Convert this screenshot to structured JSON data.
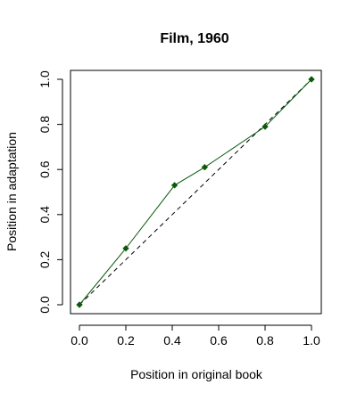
{
  "chart_data": {
    "type": "line",
    "title": "Film, 1960",
    "xlabel": "Position in original book",
    "ylabel": "Position in adaptation",
    "xlim": [
      0,
      1
    ],
    "ylim": [
      0,
      1
    ],
    "x_ticks": [
      "0.0",
      "0.2",
      "0.4",
      "0.6",
      "0.8",
      "1.0"
    ],
    "y_ticks": [
      "0.0",
      "0.2",
      "0.4",
      "0.6",
      "0.8",
      "1.0"
    ],
    "grid": false,
    "legend": "none",
    "series": [
      {
        "x": [
          0.0,
          0.2,
          0.41,
          0.54,
          0.8,
          1.0
        ],
        "y": [
          0.0,
          0.25,
          0.53,
          0.61,
          0.79,
          1.0
        ],
        "color": "#0a5a0a",
        "marker": "diamond",
        "line_style": "solid"
      }
    ],
    "reference_line": {
      "x": [
        0,
        1
      ],
      "y": [
        0,
        1
      ],
      "color": "#000000",
      "line_style": "dashed"
    }
  }
}
